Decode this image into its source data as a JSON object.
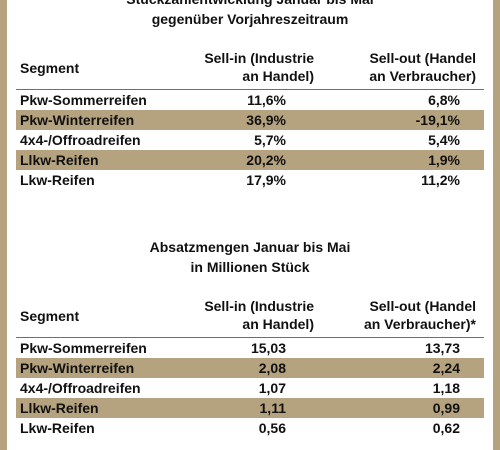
{
  "colors": {
    "accent": "#b5a27f",
    "text": "#111111",
    "background": "#ffffff"
  },
  "table1": {
    "title_line1": "Stückzahlentwicklung Januar bis Mai",
    "title_line2": "gegenüber Vorjahreszeitraum",
    "headers": {
      "segment": "Segment",
      "sellin_line1": "Sell-in (Industrie",
      "sellin_line2": "an Handel)",
      "sellout_line1": "Sell-out (Handel",
      "sellout_line2": "an Verbraucher)"
    },
    "rows": [
      {
        "segment": "Pkw-Sommerreifen",
        "sellin": "11,6%",
        "sellout": "6,8%"
      },
      {
        "segment": "Pkw-Winterreifen",
        "sellin": "36,9%",
        "sellout": "-19,1%"
      },
      {
        "segment": "4x4-/Offroadreifen",
        "sellin": "5,7%",
        "sellout": "5,4%"
      },
      {
        "segment": "Llkw-Reifen",
        "sellin": "20,2%",
        "sellout": "1,9%"
      },
      {
        "segment": "Lkw-Reifen",
        "sellin": "17,9%",
        "sellout": "11,2%"
      }
    ]
  },
  "table2": {
    "title_line1": "Absatzmengen Januar bis Mai",
    "title_line2": "in Millionen Stück",
    "headers": {
      "segment": "Segment",
      "sellin_line1": "Sell-in (Industrie",
      "sellin_line2": "an Handel)",
      "sellout_line1": "Sell-out (Handel",
      "sellout_line2": "an Verbraucher)*"
    },
    "rows": [
      {
        "segment": "Pkw-Sommerreifen",
        "sellin": "15,03",
        "sellout": "13,73"
      },
      {
        "segment": "Pkw-Winterreifen",
        "sellin": "2,08",
        "sellout": "2,24"
      },
      {
        "segment": "4x4-/Offroadreifen",
        "sellin": "1,07",
        "sellout": "1,18"
      },
      {
        "segment": "Llkw-Reifen",
        "sellin": "1,11",
        "sellout": "0,99"
      },
      {
        "segment": "Lkw-Reifen",
        "sellin": "0,56",
        "sellout": "0,62"
      }
    ]
  }
}
